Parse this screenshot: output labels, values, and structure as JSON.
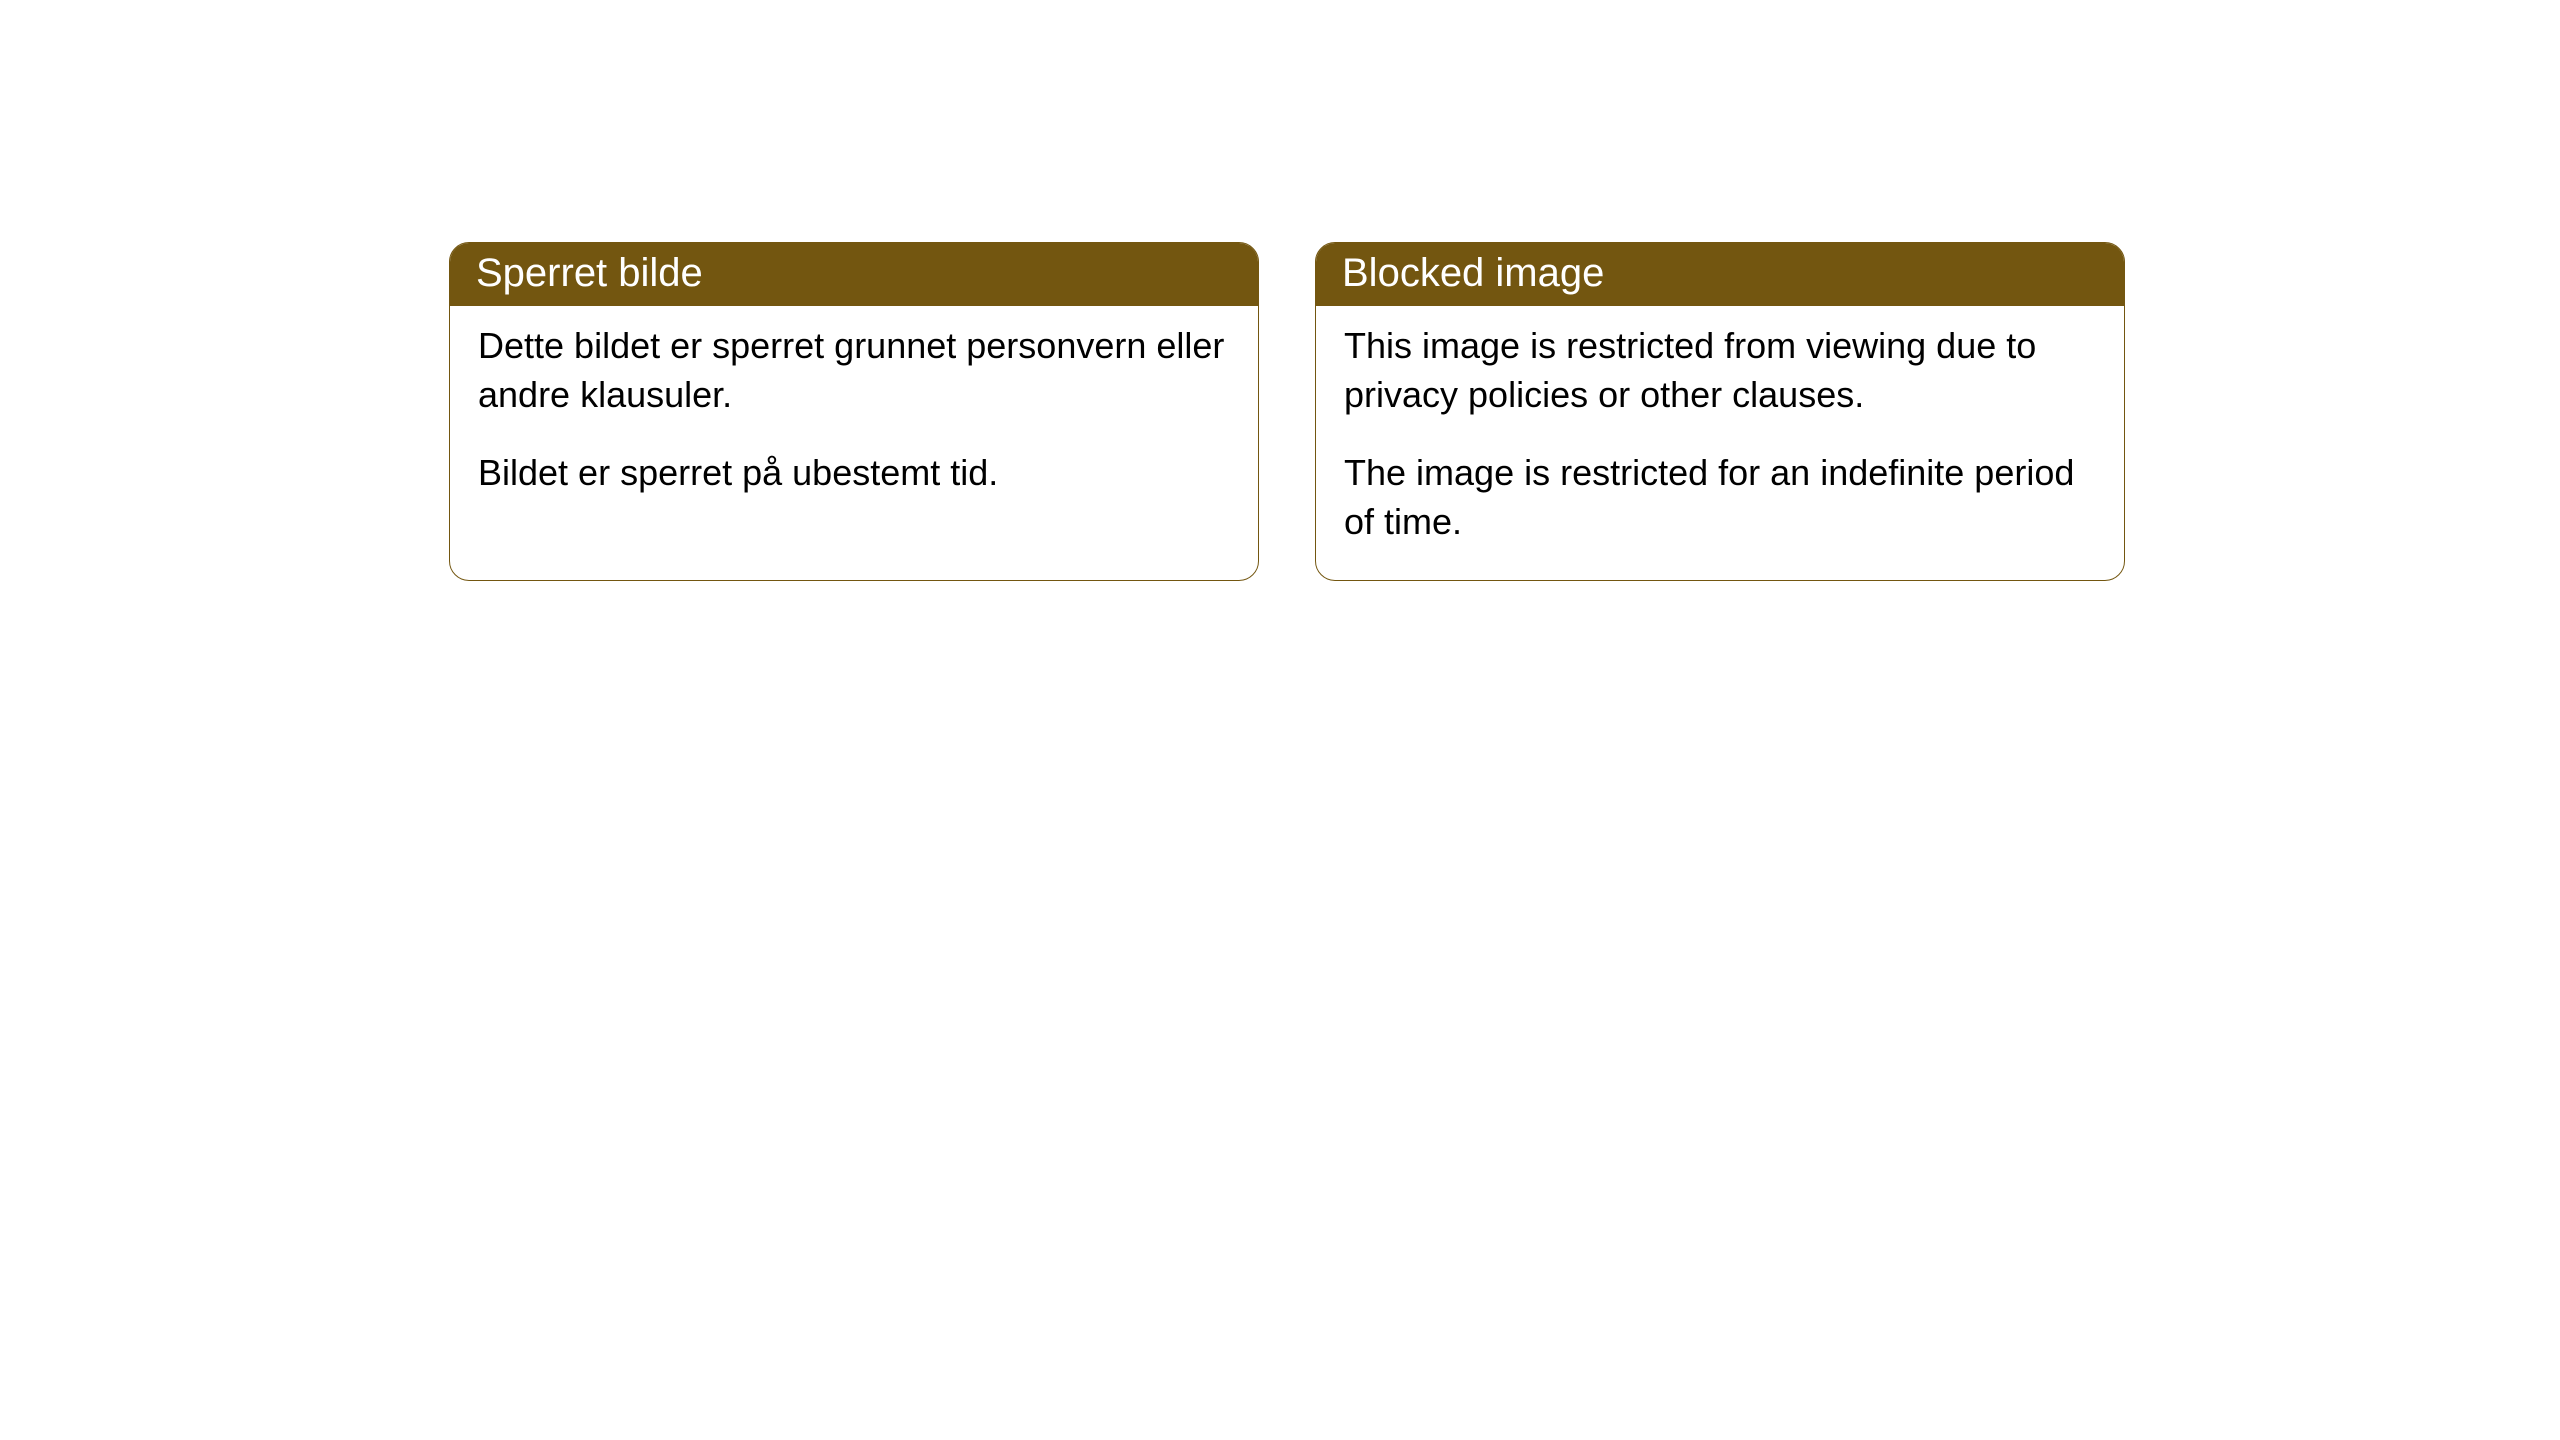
{
  "cards": [
    {
      "title": "Sperret bilde",
      "para1": "Dette bildet er sperret grunnet personvern eller andre klausuler.",
      "para2": "Bildet er sperret på ubestemt tid."
    },
    {
      "title": "Blocked image",
      "para1": "This image is restricted from viewing due to privacy policies or other clauses.",
      "para2": "The image is restricted for an indefinite period of time."
    }
  ],
  "styling": {
    "header_bg": "#735610",
    "header_text_color": "#ffffff",
    "border_color": "#735610",
    "body_text_color": "#000000",
    "body_bg": "#ffffff",
    "border_radius": 20,
    "title_fontsize": 40,
    "body_fontsize": 36
  }
}
